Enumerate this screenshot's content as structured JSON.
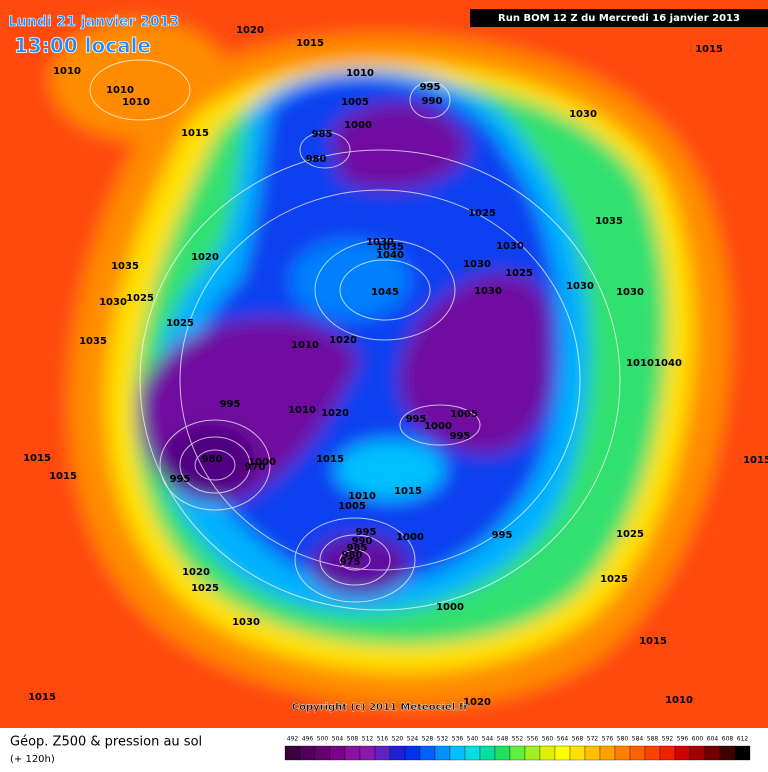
{
  "header": {
    "date": "Lundi 21 janvier 2013",
    "time": "13:00 locale",
    "run": "Run BOM 12 Z du Mercredi 16 janvier 2013"
  },
  "isobar_labels": [
    1020,
    1015,
    1010,
    1010,
    1010,
    1015,
    1010,
    995,
    990,
    1005,
    985,
    1000,
    980,
    1030,
    1025,
    1035,
    1020,
    1035,
    1030,
    1035,
    1040,
    1030,
    1030,
    1025,
    1045,
    1030,
    1030,
    1030,
    1030,
    1025,
    1025,
    1035,
    1010,
    1020,
    1010,
    1040,
    995,
    1010,
    1020,
    995,
    1005,
    1000,
    995,
    980,
    970,
    1000,
    1015,
    995,
    1015,
    1015,
    1015,
    1010,
    1015,
    1005,
    995,
    990,
    985,
    980,
    975,
    1000,
    995,
    1025,
    1020,
    1025,
    1025,
    1030,
    1000,
    1015,
    1015,
    1020,
    1010,
    1015
  ],
  "copyright": "Copyright (c) 2011 Meteociel.fr",
  "footer": {
    "title": "Géop. Z500 & pression au sol",
    "lead": "(+ 120h)"
  },
  "colorbar": {
    "values": [
      492,
      496,
      500,
      504,
      508,
      512,
      516,
      520,
      524,
      528,
      532,
      536,
      540,
      544,
      548,
      552,
      556,
      560,
      564,
      568,
      572,
      576,
      580,
      584,
      588,
      592,
      596,
      600,
      604,
      608,
      612
    ],
    "colors": [
      "#3a003a",
      "#50005a",
      "#660070",
      "#7a0088",
      "#8c10a0",
      "#8818b0",
      "#6020c8",
      "#2020d8",
      "#0030f0",
      "#0060ff",
      "#0090ff",
      "#00c0ff",
      "#00e0e0",
      "#00e0a0",
      "#20e060",
      "#60f040",
      "#a0f020",
      "#e0f000",
      "#ffff00",
      "#ffe000",
      "#ffc000",
      "#ffa000",
      "#ff8000",
      "#ff6000",
      "#ff4000",
      "#f02000",
      "#d00000",
      "#a00000",
      "#700000",
      "#400000",
      "#000000"
    ]
  }
}
